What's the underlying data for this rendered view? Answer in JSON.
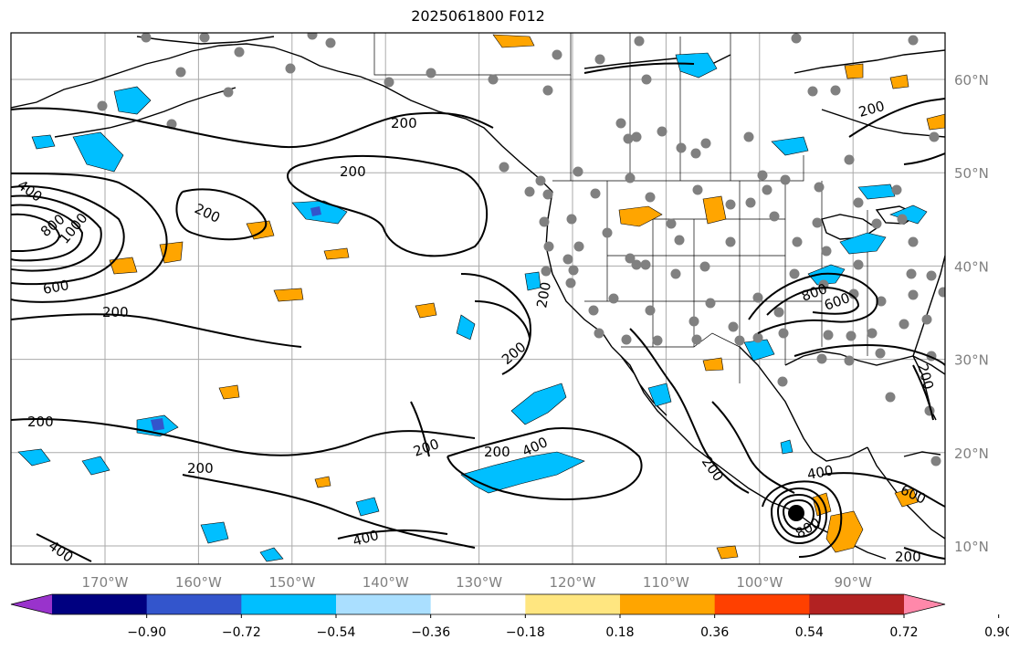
{
  "title": "2025061800 F012",
  "map": {
    "lat_ticks": [
      {
        "lat": 60,
        "label": "60°N"
      },
      {
        "lat": 50,
        "label": "50°N"
      },
      {
        "lat": 40,
        "label": "40°N"
      },
      {
        "lat": 30,
        "label": "30°N"
      },
      {
        "lat": 20,
        "label": "20°N"
      },
      {
        "lat": 10,
        "label": "10°N"
      }
    ],
    "lon_ticks": [
      {
        "lon": -170,
        "label": "170°W"
      },
      {
        "lon": -160,
        "label": "160°W"
      },
      {
        "lon": -150,
        "label": "150°W"
      },
      {
        "lon": -140,
        "label": "140°W"
      },
      {
        "lon": -130,
        "label": "130°W"
      },
      {
        "lon": -120,
        "label": "120°W"
      },
      {
        "lon": -110,
        "label": "110°W"
      },
      {
        "lon": -100,
        "label": "100°W"
      },
      {
        "lon": -90,
        "label": "90°W"
      }
    ],
    "contour_labels": [
      "200",
      "400",
      "600",
      "800",
      "1000"
    ],
    "colors": {
      "land_outline": "#000000",
      "grid": "#aaaaaa",
      "station_dots": "#808080"
    }
  },
  "colorbar": {
    "ticks": [
      "−0.90",
      "−0.72",
      "−0.54",
      "−0.36",
      "−0.18",
      "0.18",
      "0.36",
      "0.54",
      "0.72",
      "0.90"
    ],
    "colors": [
      "#9933cc",
      "#000080",
      "#3355cc",
      "#00bfff",
      "#aadfff",
      "#ffffff",
      "#ffe680",
      "#ffa500",
      "#ff4000",
      "#b22222",
      "#ff88aa"
    ]
  }
}
